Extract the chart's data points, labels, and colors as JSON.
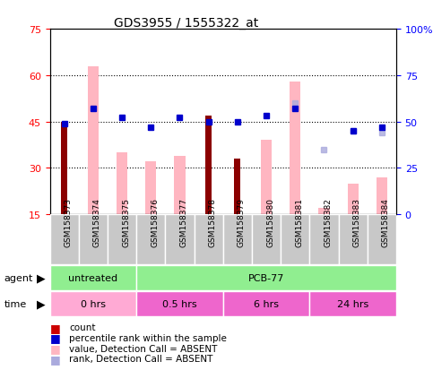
{
  "title": "GDS3955 / 1555322_at",
  "samples": [
    "GSM158373",
    "GSM158374",
    "GSM158375",
    "GSM158376",
    "GSM158377",
    "GSM158378",
    "GSM158379",
    "GSM158380",
    "GSM158381",
    "GSM158382",
    "GSM158383",
    "GSM158384"
  ],
  "count_values": [
    45,
    null,
    null,
    null,
    null,
    47,
    33,
    null,
    null,
    null,
    null,
    null
  ],
  "count_dark": [
    true,
    false,
    false,
    false,
    false,
    true,
    true,
    false,
    false,
    false,
    false,
    false
  ],
  "pink_bar_values": [
    null,
    63,
    35,
    32,
    34,
    null,
    null,
    39,
    58,
    17,
    25,
    27
  ],
  "blue_square_values": [
    49,
    57,
    52,
    47,
    52,
    50,
    50,
    53,
    57,
    null,
    45,
    47
  ],
  "light_blue_square_values": [
    null,
    null,
    null,
    null,
    null,
    null,
    null,
    null,
    60,
    35,
    45,
    44
  ],
  "left_ylim": [
    15,
    75
  ],
  "left_yticks": [
    15,
    30,
    45,
    60,
    75
  ],
  "right_ylim": [
    0,
    100
  ],
  "right_yticks": [
    0,
    25,
    50,
    75,
    100
  ],
  "right_yticklabels": [
    "0",
    "25",
    "50",
    "75",
    "100%"
  ],
  "grid_values": [
    30,
    45,
    60
  ],
  "agent_groups": [
    {
      "label": "untreated",
      "start": 0,
      "end": 3,
      "color": "#90EE90"
    },
    {
      "label": "PCB-77",
      "start": 3,
      "end": 12,
      "color": "#90EE90"
    }
  ],
  "time_groups": [
    {
      "label": "0 hrs",
      "start": 0,
      "end": 3,
      "color": "#FFAAD4"
    },
    {
      "label": "0.5 hrs",
      "start": 3,
      "end": 6,
      "color": "#EE66CC"
    },
    {
      "label": "6 hrs",
      "start": 6,
      "end": 9,
      "color": "#EE66CC"
    },
    {
      "label": "24 hrs",
      "start": 9,
      "end": 12,
      "color": "#EE66CC"
    }
  ],
  "legend_items": [
    {
      "color": "#CC0000",
      "label": "count"
    },
    {
      "color": "#0000CC",
      "label": "percentile rank within the sample"
    },
    {
      "color": "#FFB6C1",
      "label": "value, Detection Call = ABSENT"
    },
    {
      "color": "#AAAADD",
      "label": "rank, Detection Call = ABSENT"
    }
  ],
  "dark_red_color": "#8B0000",
  "red_color": "#CC2222",
  "pink_color": "#FFB6C1",
  "blue_color": "#0000CC",
  "light_blue_color": "#AAAADD"
}
